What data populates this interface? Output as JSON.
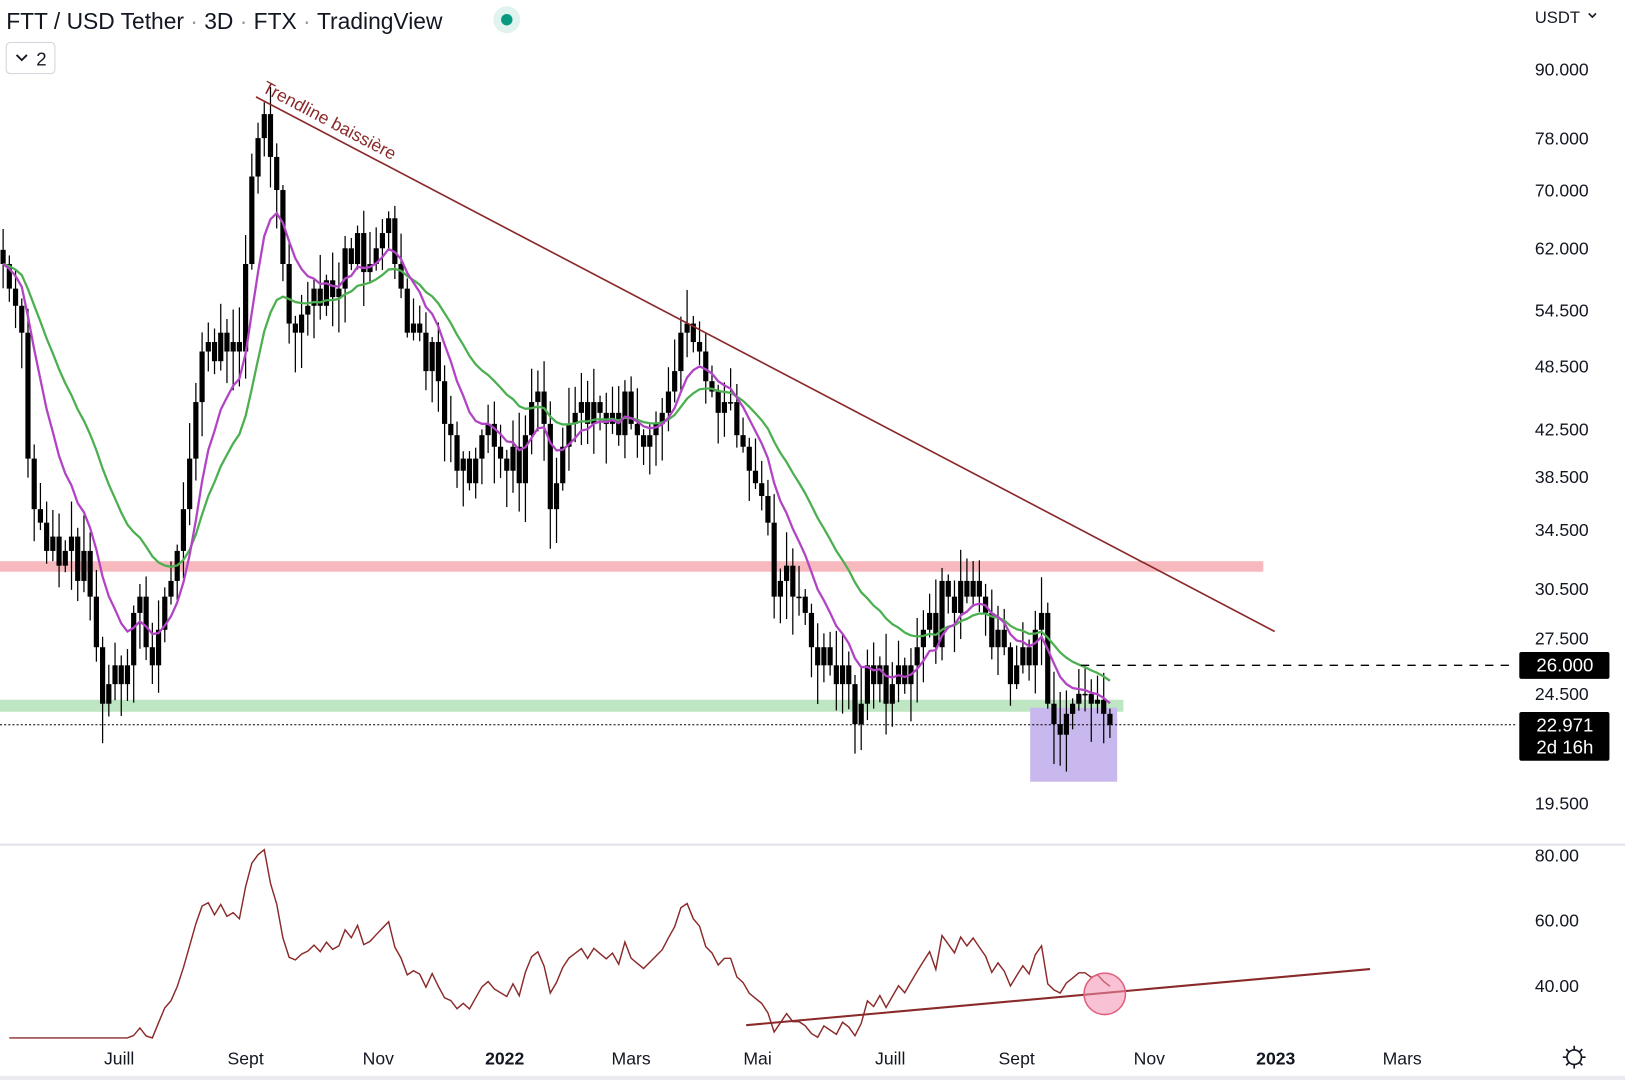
{
  "header": {
    "symbol": "FTT / USD Tether",
    "interval": "3D",
    "exchange": "FTX",
    "source": "TradingView",
    "status_color": "#089981",
    "indicators_collapsed_count": "2",
    "currency": "USDT"
  },
  "annotations": {
    "trendline_label": "Trendline baissière"
  },
  "colors": {
    "candle": "#000000",
    "ema_fast": "#b144c4",
    "ema_slow": "#4caf50",
    "trendline": "#8b2a2a",
    "resistance_zone": "#f7b9bd",
    "support_zone": "#bfe6c3",
    "target_box": "#c9b8ee",
    "rsi_line": "#8b2a2a",
    "rsi_circle": "#f48fb1"
  },
  "chart_data": [
    {
      "type": "candlestick",
      "title": "",
      "scale": "log",
      "y_ticks": [
        "90.000",
        "78.000",
        "70.000",
        "62.000",
        "54.500",
        "48.500",
        "42.500",
        "38.500",
        "34.500",
        "30.500",
        "27.500",
        "24.500",
        "19.500"
      ],
      "y_tick_values": [
        90,
        78,
        70,
        62,
        54.5,
        48.5,
        42.5,
        38.5,
        34.5,
        30.5,
        27.5,
        24.5,
        19.5
      ],
      "x_ticks": [
        {
          "label": "Juill",
          "bold": false
        },
        {
          "label": "Sept",
          "bold": false
        },
        {
          "label": "Nov",
          "bold": false
        },
        {
          "label": "2022",
          "bold": true
        },
        {
          "label": "Mars",
          "bold": false
        },
        {
          "label": "Mai",
          "bold": false
        },
        {
          "label": "Juill",
          "bold": false
        },
        {
          "label": "Sept",
          "bold": false
        },
        {
          "label": "Nov",
          "bold": false
        },
        {
          "label": "2023",
          "bold": true
        },
        {
          "label": "Mars",
          "bold": false
        }
      ],
      "closes": [
        60,
        57,
        55,
        52,
        40,
        36,
        35,
        33,
        34,
        32,
        33,
        34,
        31,
        33,
        30,
        27,
        24,
        25,
        26,
        25,
        26,
        29,
        30,
        27,
        26,
        28,
        30,
        31,
        33,
        36,
        40,
        45,
        50,
        51,
        49,
        52,
        50,
        51,
        50,
        60,
        72,
        78,
        82,
        75,
        70,
        60,
        53,
        52,
        54,
        55,
        57,
        55,
        58,
        56,
        57,
        62,
        60,
        64,
        59,
        60,
        62,
        64,
        66,
        60,
        57,
        52,
        53,
        52,
        48,
        51,
        47,
        43,
        42,
        39,
        40,
        38,
        40,
        42,
        43,
        41,
        40,
        39,
        41,
        38,
        42,
        45,
        46,
        43,
        36,
        38,
        41,
        43,
        44,
        45,
        43,
        45,
        44,
        43,
        44,
        42,
        46,
        43,
        42,
        41,
        42,
        43,
        44,
        46,
        48,
        52,
        53,
        51,
        50,
        47,
        46,
        44,
        45,
        45,
        42,
        41,
        39,
        38,
        37,
        35,
        30,
        31,
        32,
        30,
        30,
        29,
        27,
        26,
        27,
        26,
        25,
        26,
        25,
        23,
        24,
        26,
        25,
        26,
        24,
        25,
        26,
        25,
        26,
        27,
        28,
        29,
        27,
        31,
        30,
        29,
        31,
        30,
        31,
        30,
        29,
        27,
        28,
        27,
        25,
        26,
        27,
        26,
        28,
        29,
        24,
        23,
        22.5,
        23.5,
        24,
        24.5,
        24.5,
        24,
        24.2,
        23.5,
        22.971
      ],
      "moving_averages": [
        {
          "type": "EMA",
          "period": 9
        },
        {
          "type": "EMA",
          "period": 21
        }
      ],
      "trendline": {
        "from_price": 85,
        "to_price": 27.9
      },
      "resistance_zone": [
        31.6,
        32.3
      ],
      "support_zone": [
        23.6,
        24.2
      ],
      "target_box": [
        20.4,
        23.8
      ],
      "alert_level": {
        "value": 26.0,
        "label": "26.000"
      },
      "last_price": {
        "value": 22.971,
        "label": "22.971",
        "countdown": "2d 16h"
      }
    },
    {
      "type": "line",
      "title": "",
      "indicator": "RSI",
      "y_ticks": [
        "80.00",
        "60.00",
        "40.00"
      ],
      "y_tick_values": [
        80,
        60,
        40
      ],
      "trendline": {
        "from": 27.9,
        "to": 45.1
      },
      "highlight_value": 37.5
    }
  ]
}
